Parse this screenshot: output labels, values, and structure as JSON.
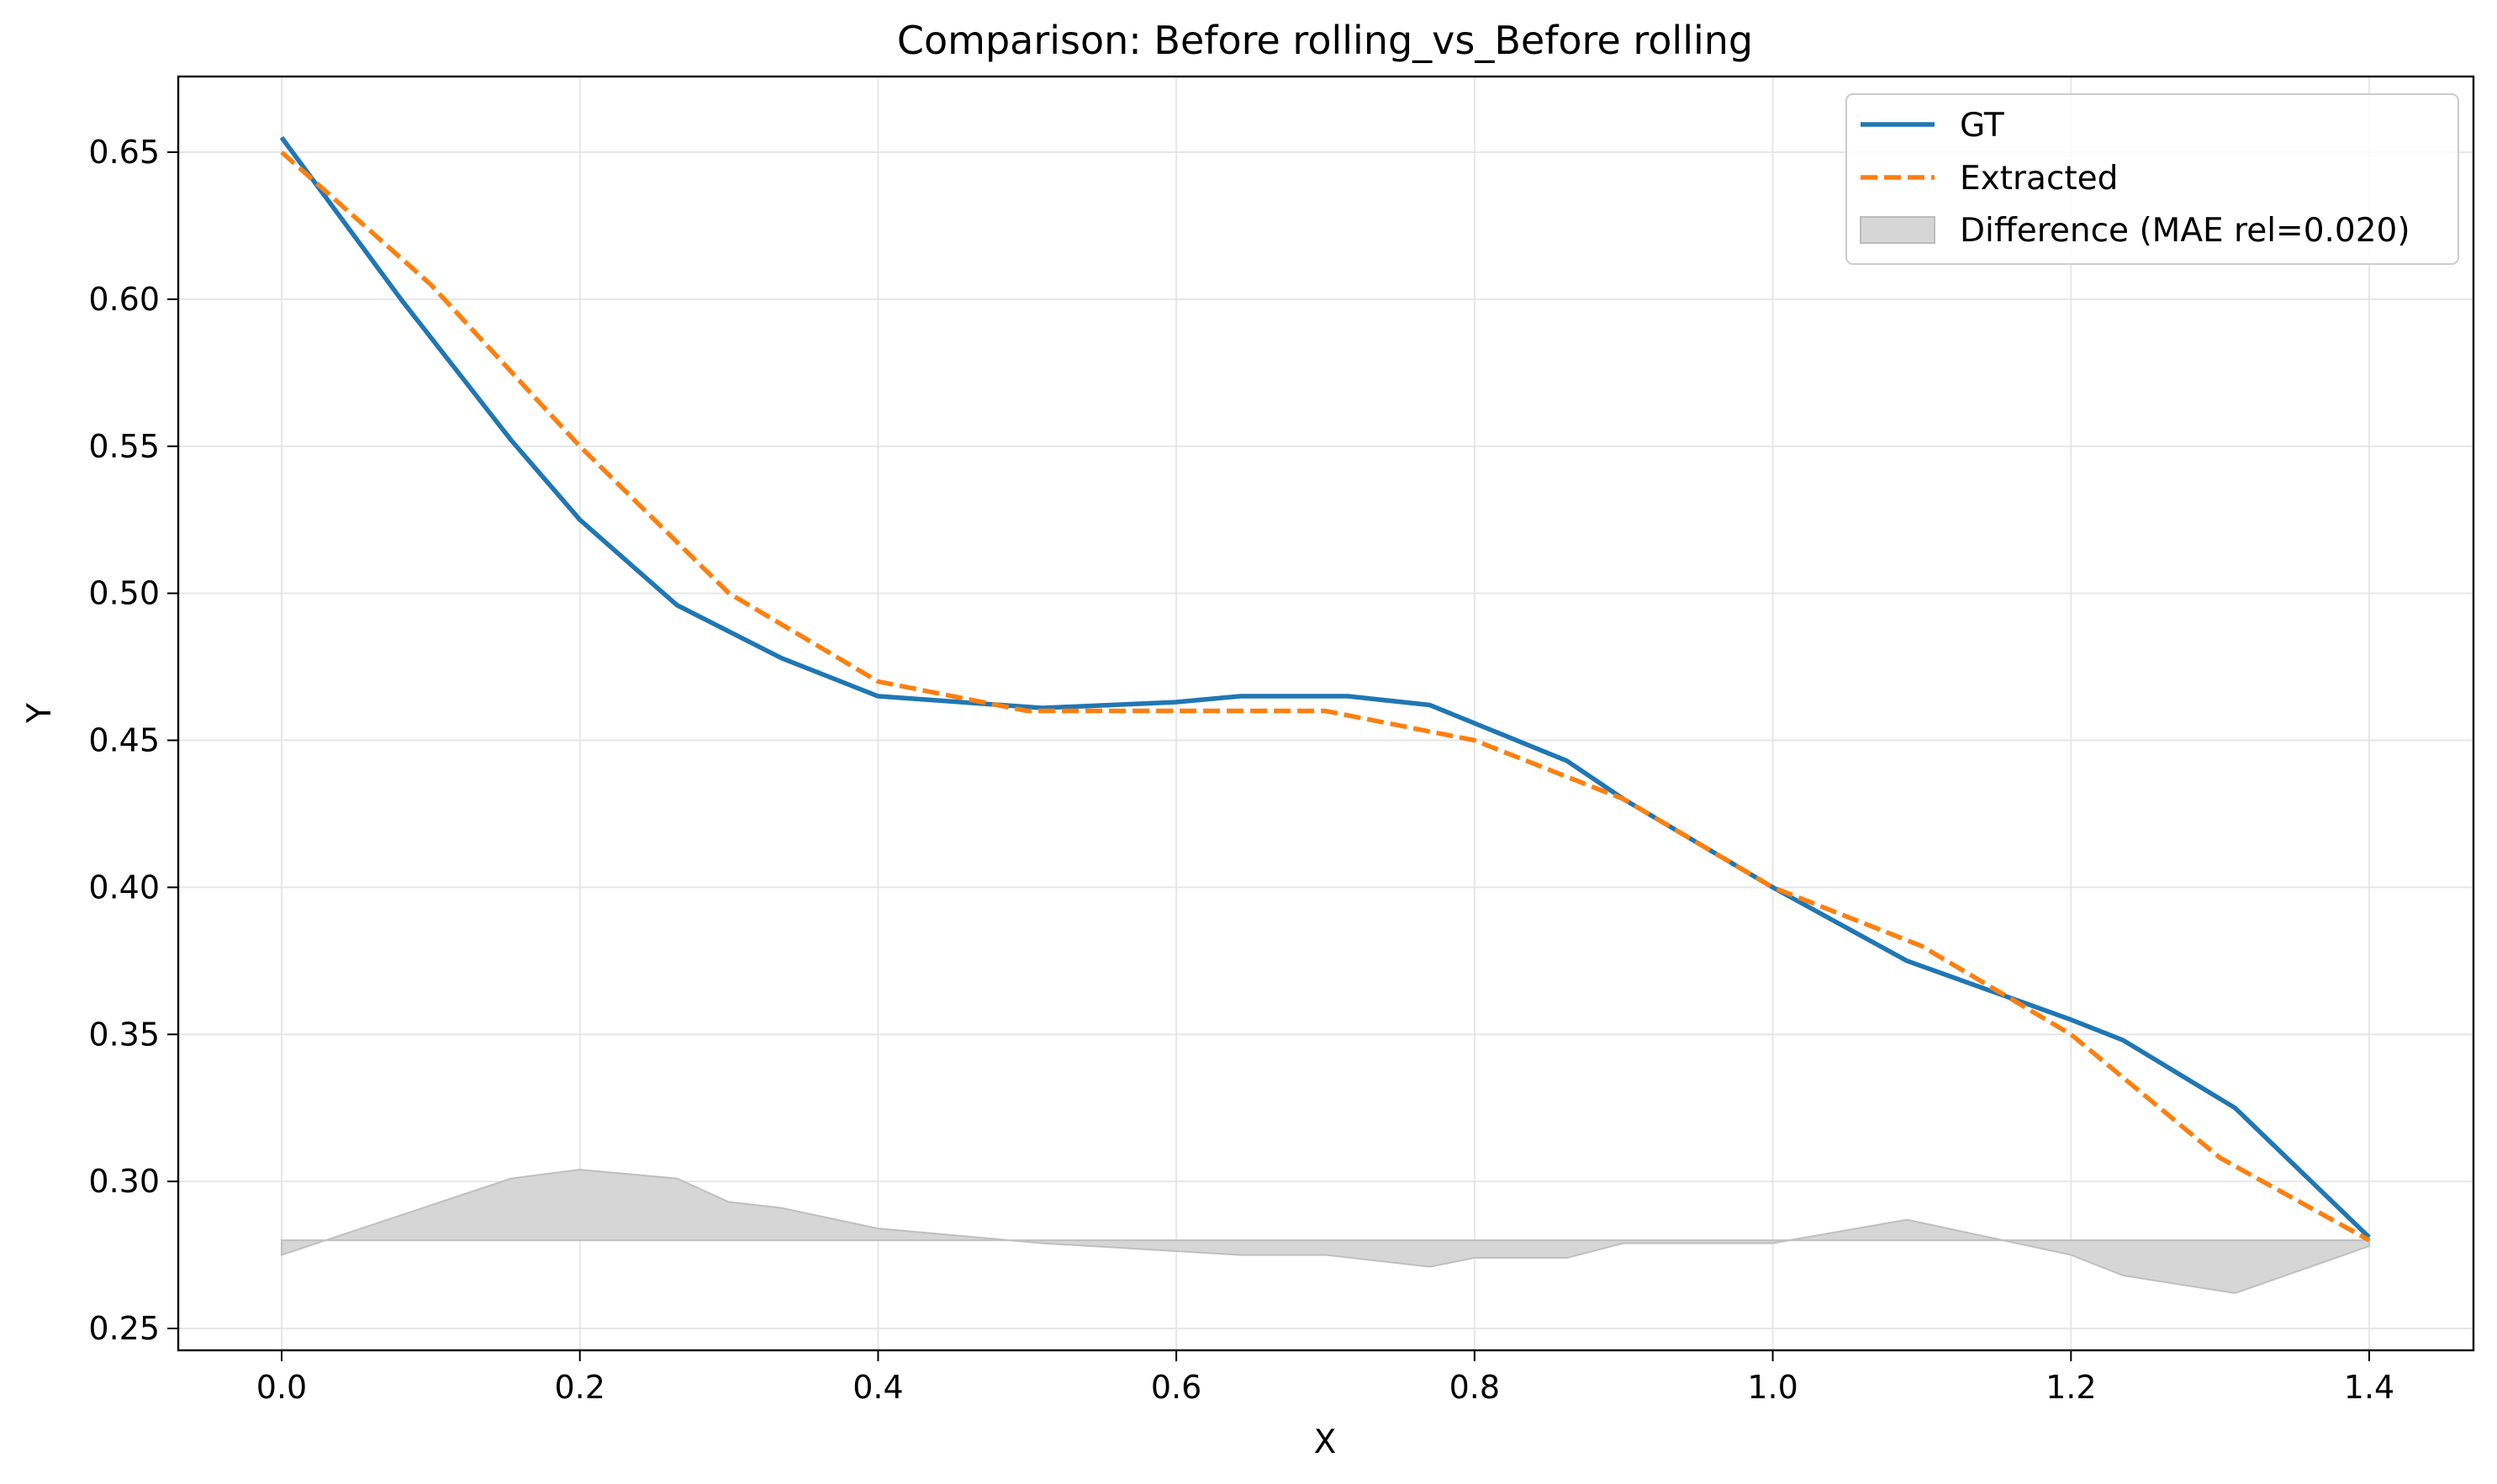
{
  "chart_data": {
    "type": "line",
    "title": "Comparison: Before rolling_vs_Before rolling",
    "xlabel": "X",
    "ylabel": "Y",
    "xlim": [
      -0.07,
      1.4
    ],
    "ylim": [
      0.243,
      0.675
    ],
    "xticks": [
      0.0,
      0.2,
      0.4,
      0.6,
      0.8,
      1.0,
      1.2,
      1.4
    ],
    "xtick_labels": [
      "0.0",
      "0.2",
      "0.4",
      "0.6",
      "0.8",
      "1.0",
      "1.2",
      "1.4"
    ],
    "yticks": [
      0.25,
      0.3,
      0.35,
      0.4,
      0.45,
      0.5,
      0.55,
      0.6,
      0.65
    ],
    "ytick_labels": [
      "0.25",
      "0.30",
      "0.35",
      "0.40",
      "0.45",
      "0.50",
      "0.55",
      "0.60",
      "0.65"
    ],
    "grid": true,
    "legend_position": "top-right",
    "series": [
      {
        "name": "GT",
        "color": "#1f77b4",
        "style": "solid",
        "x": [
          0.0,
          0.08,
          0.154,
          0.2,
          0.265,
          0.335,
          0.4,
          0.51,
          0.6,
          0.643,
          0.715,
          0.77,
          0.862,
          0.9,
          1.0,
          1.09,
          1.2,
          1.235,
          1.31,
          1.4
        ],
        "y": [
          0.655,
          0.6,
          0.552,
          0.525,
          0.496,
          0.478,
          0.465,
          0.461,
          0.463,
          0.465,
          0.465,
          0.462,
          0.443,
          0.43,
          0.4,
          0.375,
          0.355,
          0.348,
          0.325,
          0.281
        ]
      },
      {
        "name": "Extracted",
        "color": "#ff7f0e",
        "style": "dashed",
        "x": [
          0.0,
          0.1,
          0.2,
          0.3,
          0.4,
          0.5,
          0.6,
          0.7,
          0.8,
          0.9,
          1.0,
          1.1,
          1.2,
          1.3,
          1.4
        ],
        "y": [
          0.65,
          0.605,
          0.55,
          0.5,
          0.47,
          0.46,
          0.46,
          0.46,
          0.45,
          0.43,
          0.4,
          0.38,
          0.35,
          0.308,
          0.28
        ]
      },
      {
        "name": "Difference (MAE rel=0.020)",
        "type": "area",
        "color": "#bfbfbf",
        "baseline": 0.28,
        "x": [
          0.0,
          0.154,
          0.2,
          0.265,
          0.3,
          0.335,
          0.4,
          0.51,
          0.643,
          0.7,
          0.77,
          0.8,
          0.862,
          0.9,
          1.0,
          1.09,
          1.2,
          1.235,
          1.31,
          1.4
        ],
        "y": [
          0.275,
          0.301,
          0.304,
          0.301,
          0.293,
          0.291,
          0.284,
          0.279,
          0.275,
          0.275,
          0.271,
          0.274,
          0.274,
          0.279,
          0.279,
          0.287,
          0.275,
          0.268,
          0.262,
          0.278
        ]
      }
    ]
  }
}
